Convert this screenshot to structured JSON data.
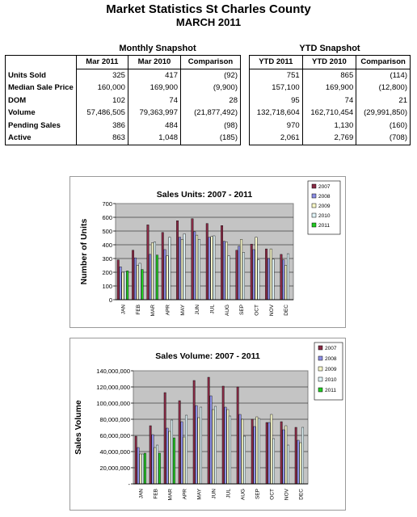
{
  "header": {
    "title": "Market Statistics St Charles County",
    "subtitle": "MARCH 2011"
  },
  "monthly": {
    "title": "Monthly Snapshot",
    "columns": [
      "Mar 2011",
      "Mar 2010",
      "Comparison"
    ],
    "rows": [
      {
        "label": "Units Sold",
        "values": [
          "325",
          "417",
          "(92)"
        ]
      },
      {
        "label": "Median Sale Price",
        "values": [
          "160,000",
          "169,900",
          "(9,900)"
        ]
      },
      {
        "label": "DOM",
        "values": [
          "102",
          "74",
          "28"
        ]
      },
      {
        "label": "Volume",
        "values": [
          "57,486,505",
          "79,363,997",
          "(21,877,492)"
        ]
      },
      {
        "label": "Pending Sales",
        "values": [
          "386",
          "484",
          "(98)"
        ]
      },
      {
        "label": "Active",
        "values": [
          "863",
          "1,048",
          "(185)"
        ]
      }
    ]
  },
  "ytd": {
    "title": "YTD Snapshot",
    "columns": [
      "YTD 2011",
      "YTD 2010",
      "Comparison"
    ],
    "rows": [
      {
        "values": [
          "751",
          "865",
          "(114)"
        ]
      },
      {
        "values": [
          "157,100",
          "169,900",
          "(12,800)"
        ]
      },
      {
        "values": [
          "95",
          "74",
          "21"
        ]
      },
      {
        "values": [
          "132,718,604",
          "162,710,454",
          "(29,991,850)"
        ]
      },
      {
        "values": [
          "970",
          "1,130",
          "(160)"
        ]
      },
      {
        "values": [
          "2,061",
          "2,769",
          "(708)"
        ]
      }
    ]
  },
  "colors": {
    "2007": "#8b2b46",
    "2008": "#8d8fe6",
    "2009": "#f8f8c8",
    "2010": "#e0f4f8",
    "2011": "#22cc22",
    "plot_bg": "#c4c4c4"
  },
  "chart_data": [
    {
      "type": "bar",
      "title": "Sales Units: 2007 - 2011",
      "xlabel": "",
      "ylabel": "Number of Units",
      "ylim": [
        0,
        700
      ],
      "yticks": [
        "0",
        "100",
        "200",
        "300",
        "400",
        "500",
        "600",
        "700"
      ],
      "categories": [
        "JAN",
        "FEB",
        "MAR",
        "APR",
        "MAY",
        "JUN",
        "JUL",
        "AUG",
        "SEP",
        "OCT",
        "NOV",
        "DEC"
      ],
      "legend_position": "right",
      "series": [
        {
          "name": "2007",
          "values": [
            290,
            360,
            545,
            490,
            575,
            590,
            555,
            540,
            360,
            405,
            370,
            330
          ]
        },
        {
          "name": "2008",
          "values": [
            240,
            305,
            330,
            365,
            455,
            495,
            455,
            425,
            390,
            365,
            300,
            290
          ]
        },
        {
          "name": "2009",
          "values": [
            200,
            250,
            415,
            320,
            440,
            470,
            460,
            420,
            440,
            455,
            370,
            250
          ]
        },
        {
          "name": "2010",
          "values": [
            205,
            265,
            420,
            455,
            480,
            440,
            465,
            320,
            345,
            290,
            295,
            335
          ]
        },
        {
          "name": "2011",
          "values": [
            210,
            220,
            325,
            null,
            null,
            null,
            null,
            null,
            null,
            null,
            null,
            null
          ]
        }
      ]
    },
    {
      "type": "bar",
      "title": "Sales Volume: 2007 - 2011",
      "xlabel": "",
      "ylabel": "Sales Volume",
      "ylim": [
        0,
        140000000
      ],
      "yticks": [
        "-",
        "20,000,000",
        "40,000,000",
        "60,000,000",
        "80,000,000",
        "100,000,000",
        "120,000,000",
        "140,000,000"
      ],
      "categories": [
        "JAN",
        "FEB",
        "MAR",
        "APR",
        "MAY",
        "JUN",
        "JUL",
        "AUG",
        "SEP",
        "OCT",
        "NOV",
        "DEC"
      ],
      "legend_position": "right",
      "series": [
        {
          "name": "2007",
          "values": [
            59000000,
            72000000,
            113000000,
            103000000,
            128000000,
            132000000,
            121000000,
            120000000,
            80000000,
            76000000,
            77000000,
            70000000
          ]
        },
        {
          "name": "2008",
          "values": [
            45000000,
            61000000,
            69000000,
            77000000,
            97000000,
            109000000,
            95000000,
            86000000,
            71000000,
            76000000,
            67000000,
            54000000
          ]
        },
        {
          "name": "2009",
          "values": [
            37000000,
            45000000,
            65000000,
            58000000,
            82000000,
            92000000,
            92000000,
            80000000,
            83000000,
            86000000,
            72000000,
            51000000
          ]
        },
        {
          "name": "2010",
          "values": [
            37000000,
            48000000,
            79000000,
            85000000,
            95000000,
            96000000,
            84000000,
            59000000,
            81000000,
            56000000,
            48000000,
            70000000
          ]
        },
        {
          "name": "2011",
          "values": [
            38000000,
            38000000,
            57000000,
            null,
            null,
            null,
            null,
            null,
            null,
            null,
            null,
            null
          ]
        }
      ]
    }
  ]
}
